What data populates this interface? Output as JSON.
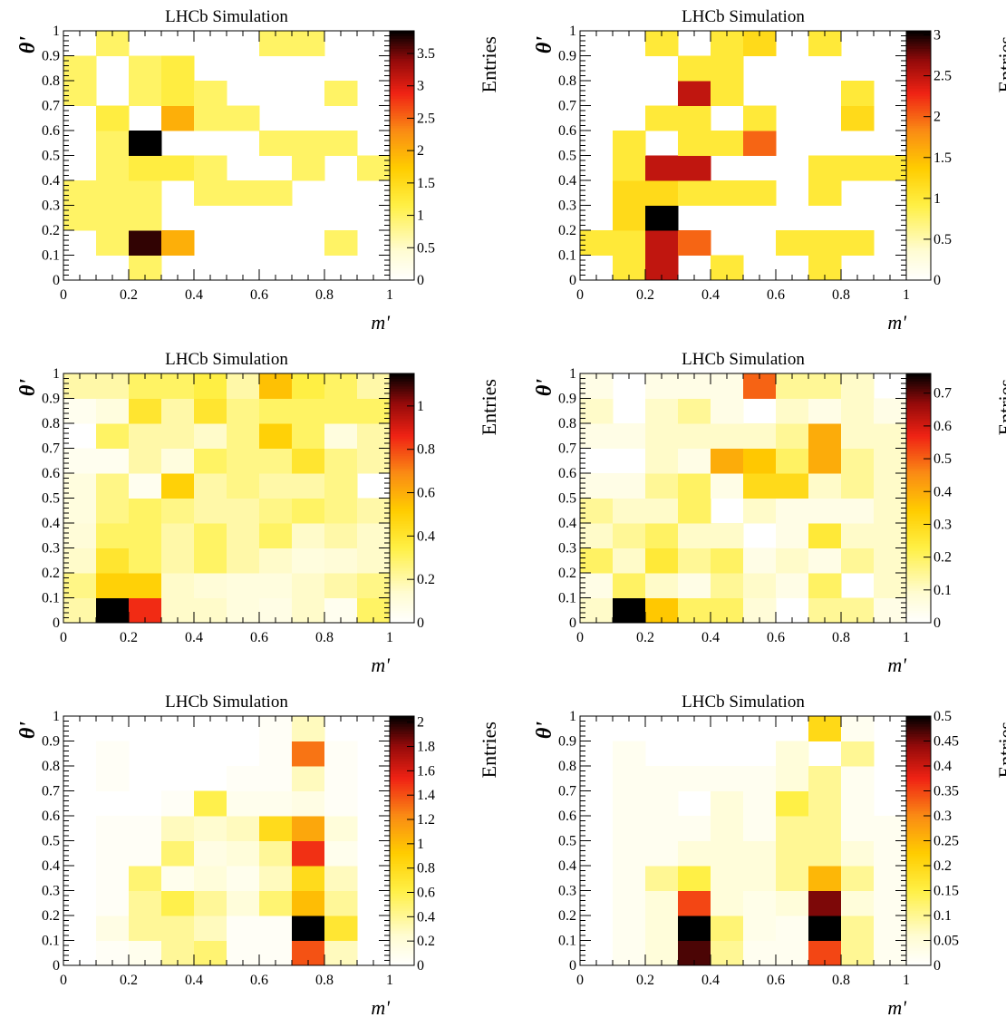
{
  "chart_data": [
    {
      "type": "heatmap",
      "title": "LHCb Simulation",
      "xlabel": "m'",
      "ylabel": "θ'",
      "zlabel": "Entries",
      "xlim": [
        0,
        1
      ],
      "ylim": [
        0,
        1
      ],
      "xticks": [
        "0",
        "0.2",
        "0.4",
        "0.6",
        "0.8",
        "1"
      ],
      "yticks": [
        "0",
        "0.1",
        "0.2",
        "0.3",
        "0.4",
        "0.5",
        "0.6",
        "0.7",
        "0.8",
        "0.9",
        "1"
      ],
      "zmax": 3.85,
      "zticks": [
        0,
        0.5,
        1,
        1.5,
        2,
        2.5,
        3,
        3.5
      ],
      "zticklabels": [
        "0",
        "0.5",
        "1",
        "1.5",
        "2",
        "2.5",
        "3",
        "3.5"
      ],
      "x_bin_edges": [
        0,
        0.1,
        0.2,
        0.3,
        0.4,
        0.5,
        0.6,
        0.7,
        0.8,
        0.9,
        1.0
      ],
      "y_bin_edges": [
        0,
        0.1,
        0.2,
        0.3,
        0.4,
        0.5,
        0.6,
        0.7,
        0.8,
        0.9,
        1.0
      ],
      "z": [
        [
          0,
          0,
          1,
          0,
          0,
          0,
          0,
          0,
          0,
          0
        ],
        [
          0,
          1,
          3.7,
          2,
          0,
          0,
          0,
          0,
          1,
          0
        ],
        [
          1,
          1,
          1,
          0,
          0,
          0,
          0,
          0,
          0,
          0
        ],
        [
          1,
          1,
          1,
          0,
          1,
          1,
          1,
          0,
          0,
          0
        ],
        [
          0,
          1,
          1.2,
          1.2,
          1,
          0,
          0,
          1,
          0,
          1
        ],
        [
          0,
          1,
          3.85,
          0,
          0,
          0,
          1,
          1,
          1,
          0
        ],
        [
          0,
          1.2,
          0,
          2,
          1,
          1,
          0,
          0,
          0,
          0
        ],
        [
          1,
          0,
          1,
          1.2,
          1,
          0,
          0,
          0,
          1,
          0
        ],
        [
          1,
          0,
          1,
          1.2,
          0,
          0,
          0,
          0,
          0,
          0
        ],
        [
          0,
          1,
          0,
          0,
          0,
          0,
          1,
          1,
          0,
          0
        ]
      ]
    },
    {
      "type": "heatmap",
      "title": "LHCb Simulation",
      "xlabel": "m'",
      "ylabel": "θ'",
      "zlabel": "Entries",
      "xlim": [
        0,
        1
      ],
      "ylim": [
        0,
        1
      ],
      "xticks": [
        "0",
        "0.2",
        "0.4",
        "0.6",
        "0.8",
        "1"
      ],
      "yticks": [
        "0",
        "0.1",
        "0.2",
        "0.3",
        "0.4",
        "0.5",
        "0.6",
        "0.7",
        "0.8",
        "0.9",
        "1"
      ],
      "zmax": 3.05,
      "zticks": [
        0,
        0.5,
        1,
        1.5,
        2,
        2.5,
        3
      ],
      "zticklabels": [
        "0",
        "0.5",
        "1",
        "1.5",
        "2",
        "2.5",
        "3"
      ],
      "x_bin_edges": [
        0,
        0.1,
        0.2,
        0.3,
        0.4,
        0.5,
        0.6,
        0.7,
        0.8,
        0.9,
        1.0
      ],
      "y_bin_edges": [
        0,
        0.1,
        0.2,
        0.3,
        0.4,
        0.5,
        0.6,
        0.7,
        0.8,
        0.9,
        1.0
      ],
      "z": [
        [
          0,
          1,
          2.5,
          0,
          1,
          0,
          0,
          1,
          0,
          0
        ],
        [
          1,
          1,
          2.5,
          2,
          0,
          0,
          1,
          1,
          1,
          0
        ],
        [
          0,
          1.2,
          3.05,
          0,
          0,
          0,
          0,
          0,
          0,
          0
        ],
        [
          0,
          1.2,
          1.2,
          1,
          1,
          1,
          0,
          1,
          0,
          0
        ],
        [
          0,
          1,
          2.5,
          2.5,
          0,
          0,
          0,
          1,
          1,
          1
        ],
        [
          0,
          1,
          0,
          1,
          1,
          2,
          0,
          0,
          0,
          0
        ],
        [
          0,
          0,
          1,
          1,
          0,
          1,
          0,
          0,
          1.2,
          0
        ],
        [
          0,
          0,
          0,
          2.5,
          1,
          0,
          0,
          0,
          1,
          0
        ],
        [
          0,
          0,
          0,
          1,
          1,
          0,
          0,
          0,
          0,
          0
        ],
        [
          0,
          0,
          1,
          0,
          1,
          1.2,
          0,
          1,
          0,
          0
        ]
      ]
    },
    {
      "type": "heatmap",
      "title": "LHCb Simulation",
      "xlabel": "m'",
      "ylabel": "θ'",
      "zlabel": "Entries",
      "xlim": [
        0,
        1
      ],
      "ylim": [
        0,
        1
      ],
      "xticks": [
        "0",
        "0.2",
        "0.4",
        "0.6",
        "0.8",
        "1"
      ],
      "yticks": [
        "0",
        "0.1",
        "0.2",
        "0.3",
        "0.4",
        "0.5",
        "0.6",
        "0.7",
        "0.8",
        "0.9",
        "1"
      ],
      "zmax": 1.15,
      "zticks": [
        0,
        0.2,
        0.4,
        0.6,
        0.8,
        1
      ],
      "zticklabels": [
        "0",
        "0.2",
        "0.4",
        "0.6",
        "0.8",
        "1"
      ],
      "x_bin_edges": [
        0,
        0.1,
        0.2,
        0.3,
        0.4,
        0.5,
        0.6,
        0.7,
        0.8,
        0.9,
        1.0
      ],
      "y_bin_edges": [
        0,
        0.1,
        0.2,
        0.3,
        0.4,
        0.5,
        0.6,
        0.7,
        0.8,
        0.9,
        1.0
      ],
      "z": [
        [
          0.2,
          1.15,
          0.85,
          0.15,
          0.15,
          0.1,
          0.08,
          0.15,
          0.05,
          0.3
        ],
        [
          0.25,
          0.5,
          0.5,
          0.15,
          0.12,
          0.1,
          0.1,
          0.15,
          0.2,
          0.25
        ],
        [
          0.15,
          0.4,
          0.3,
          0.2,
          0.3,
          0.2,
          0.15,
          0.1,
          0.12,
          0.15
        ],
        [
          0.12,
          0.3,
          0.3,
          0.2,
          0.3,
          0.2,
          0.3,
          0.15,
          0.2,
          0.15
        ],
        [
          0.1,
          0.25,
          0.3,
          0.25,
          0.2,
          0.2,
          0.25,
          0.3,
          0.25,
          0.2
        ],
        [
          0.1,
          0.25,
          0.05,
          0.5,
          0.2,
          0.25,
          0.2,
          0.2,
          0.25,
          0.0
        ],
        [
          0.05,
          0.05,
          0.2,
          0.1,
          0.3,
          0.25,
          0.25,
          0.4,
          0.25,
          0.2
        ],
        [
          0.0,
          0.3,
          0.2,
          0.2,
          0.15,
          0.25,
          0.5,
          0.3,
          0.1,
          0.2
        ],
        [
          0.05,
          0.1,
          0.4,
          0.2,
          0.4,
          0.25,
          0.3,
          0.3,
          0.3,
          0.3
        ],
        [
          0.2,
          0.2,
          0.3,
          0.3,
          0.35,
          0.2,
          0.55,
          0.35,
          0.3,
          0.2
        ]
      ]
    },
    {
      "type": "heatmap",
      "title": "LHCb Simulation",
      "xlabel": "m'",
      "ylabel": "θ'",
      "zlabel": "Entries",
      "xlim": [
        0,
        1
      ],
      "ylim": [
        0,
        1
      ],
      "xticks": [
        "0",
        "0.2",
        "0.4",
        "0.6",
        "0.8",
        "1"
      ],
      "yticks": [
        "0",
        "0.1",
        "0.2",
        "0.3",
        "0.4",
        "0.5",
        "0.6",
        "0.7",
        "0.8",
        "0.9",
        "1"
      ],
      "zmax": 0.76,
      "zticks": [
        0,
        0.1,
        0.2,
        0.3,
        0.4,
        0.5,
        0.6,
        0.7
      ],
      "zticklabels": [
        "0",
        "0.1",
        "0.2",
        "0.3",
        "0.4",
        "0.5",
        "0.6",
        "0.7"
      ],
      "x_bin_edges": [
        0,
        0.1,
        0.2,
        0.3,
        0.4,
        0.5,
        0.6,
        0.7,
        0.8,
        0.9,
        1.0
      ],
      "y_bin_edges": [
        0,
        0.1,
        0.2,
        0.3,
        0.4,
        0.5,
        0.6,
        0.7,
        0.8,
        0.9,
        1.0
      ],
      "z": [
        [
          0.1,
          0.76,
          0.35,
          0.2,
          0.2,
          0.08,
          0.0,
          0.15,
          0.15,
          0.05
        ],
        [
          0.05,
          0.2,
          0.1,
          0.05,
          0.15,
          0.1,
          0.05,
          0.2,
          0.0,
          0.1
        ],
        [
          0.2,
          0.1,
          0.25,
          0.15,
          0.2,
          0.05,
          0.1,
          0.05,
          0.15,
          0.1
        ],
        [
          0.1,
          0.15,
          0.2,
          0.1,
          0.1,
          0.0,
          0.05,
          0.25,
          0.1,
          0.1
        ],
        [
          0.15,
          0.1,
          0.1,
          0.2,
          0.0,
          0.1,
          0.05,
          0.05,
          0.05,
          0.1
        ],
        [
          0.05,
          0.05,
          0.15,
          0.2,
          0.05,
          0.3,
          0.3,
          0.1,
          0.15,
          0.1
        ],
        [
          0.0,
          0.0,
          0.1,
          0.05,
          0.4,
          0.35,
          0.2,
          0.4,
          0.15,
          0.1
        ],
        [
          0.05,
          0.05,
          0.1,
          0.1,
          0.1,
          0.1,
          0.15,
          0.4,
          0.1,
          0.1
        ],
        [
          0.1,
          0.0,
          0.1,
          0.15,
          0.05,
          0.0,
          0.1,
          0.05,
          0.1,
          0.05
        ],
        [
          0.05,
          0.0,
          0.05,
          0.05,
          0.05,
          0.5,
          0.15,
          0.15,
          0.1,
          0.0
        ]
      ]
    },
    {
      "type": "heatmap",
      "title": "LHCb Simulation",
      "xlabel": "m'",
      "ylabel": "θ'",
      "zlabel": "Entries",
      "xlim": [
        0,
        1
      ],
      "ylim": [
        0,
        1
      ],
      "xticks": [
        "0",
        "0.2",
        "0.4",
        "0.6",
        "0.8",
        "1"
      ],
      "yticks": [
        "0",
        "0.1",
        "0.2",
        "0.3",
        "0.4",
        "0.5",
        "0.6",
        "0.7",
        "0.8",
        "0.9",
        "1"
      ],
      "zmax": 2.05,
      "zticks": [
        0,
        0.2,
        0.4,
        0.6,
        0.8,
        1,
        1.2,
        1.4,
        1.6,
        1.8,
        2
      ],
      "zticklabels": [
        "0",
        "0.2",
        "0.4",
        "0.6",
        "0.8",
        "1",
        "1.2",
        "1.4",
        "1.6",
        "1.8",
        "2"
      ],
      "x_bin_edges": [
        0,
        0.1,
        0.2,
        0.3,
        0.4,
        0.5,
        0.6,
        0.7,
        0.8,
        0.9,
        1.0
      ],
      "y_bin_edges": [
        0,
        0.1,
        0.2,
        0.3,
        0.4,
        0.5,
        0.6,
        0.7,
        0.8,
        0.9,
        1.0
      ],
      "z": [
        [
          0,
          0.05,
          0.1,
          0.4,
          0.5,
          0.05,
          0.05,
          1.4,
          0.3,
          0
        ],
        [
          0,
          0.15,
          0.4,
          0.4,
          0.3,
          0.05,
          0.05,
          2.05,
          0.7,
          0
        ],
        [
          0,
          0.05,
          0.4,
          0.6,
          0.4,
          0.2,
          0.5,
          1.0,
          0.4,
          0
        ],
        [
          0,
          0.05,
          0.5,
          0.1,
          0.2,
          0.1,
          0.3,
          0.8,
          0.3,
          0
        ],
        [
          0,
          0.05,
          0.05,
          0.5,
          0.15,
          0.2,
          0.4,
          1.5,
          0.1,
          0
        ],
        [
          0,
          0.05,
          0.05,
          0.3,
          0.25,
          0.3,
          0.8,
          1.1,
          0.2,
          0
        ],
        [
          0,
          0,
          0,
          0.05,
          0.6,
          0.1,
          0.1,
          0.15,
          0.05,
          0
        ],
        [
          0,
          0.05,
          0,
          0,
          0,
          0.05,
          0.05,
          0.3,
          0.05,
          0
        ],
        [
          0,
          0.05,
          0,
          0,
          0,
          0,
          0.05,
          1.3,
          0.05,
          0
        ],
        [
          0,
          0,
          0,
          0,
          0,
          0,
          0.05,
          0.3,
          0,
          0
        ]
      ]
    },
    {
      "type": "heatmap",
      "title": "LHCb Simulation",
      "xlabel": "m'",
      "ylabel": "θ'",
      "zlabel": "Entries",
      "xlim": [
        0,
        1
      ],
      "ylim": [
        0,
        1
      ],
      "xticks": [
        "0",
        "0.2",
        "0.4",
        "0.6",
        "0.8",
        "1"
      ],
      "yticks": [
        "0",
        "0.1",
        "0.2",
        "0.3",
        "0.4",
        "0.5",
        "0.6",
        "0.7",
        "0.8",
        "0.9",
        "1"
      ],
      "zmax": 0.5,
      "zticks": [
        0,
        0.05,
        0.1,
        0.15,
        0.2,
        0.25,
        0.3,
        0.35,
        0.4,
        0.45,
        0.5
      ],
      "zticklabels": [
        "0",
        "0.05",
        "0.1",
        "0.15",
        "0.2",
        "0.25",
        "0.3",
        "0.35",
        "0.4",
        "0.45",
        "0.5"
      ],
      "x_bin_edges": [
        0,
        0.1,
        0.2,
        0.3,
        0.4,
        0.5,
        0.6,
        0.7,
        0.8,
        0.9,
        1.0
      ],
      "y_bin_edges": [
        0,
        0.1,
        0.2,
        0.3,
        0.4,
        0.5,
        0.6,
        0.7,
        0.8,
        0.9,
        1.0
      ],
      "z": [
        [
          0,
          0.02,
          0.05,
          0.47,
          0.1,
          0.02,
          0.02,
          0.35,
          0.1,
          0.02
        ],
        [
          0,
          0.02,
          0.05,
          0.5,
          0.12,
          0.03,
          0.02,
          0.5,
          0.1,
          0.02
        ],
        [
          0,
          0.02,
          0.05,
          0.35,
          0.05,
          0.03,
          0.05,
          0.45,
          0.05,
          0.02
        ],
        [
          0,
          0.02,
          0.1,
          0.15,
          0.05,
          0.05,
          0.1,
          0.25,
          0.1,
          0.02
        ],
        [
          0,
          0.02,
          0.02,
          0.05,
          0.05,
          0.05,
          0.1,
          0.1,
          0.05,
          0.02
        ],
        [
          0,
          0.02,
          0.02,
          0.02,
          0.05,
          0.02,
          0.1,
          0.1,
          0.02,
          0.02
        ],
        [
          0,
          0.02,
          0.02,
          0.0,
          0.05,
          0.02,
          0.15,
          0.1,
          0.02,
          0.0
        ],
        [
          0,
          0.02,
          0.02,
          0.02,
          0.02,
          0.02,
          0.05,
          0.1,
          0.02,
          0.0
        ],
        [
          0,
          0.02,
          0,
          0,
          0,
          0,
          0.05,
          0.0,
          0.1,
          0.0
        ],
        [
          0,
          0,
          0,
          0,
          0,
          0,
          0,
          0.2,
          0.02,
          0.0
        ]
      ]
    }
  ]
}
